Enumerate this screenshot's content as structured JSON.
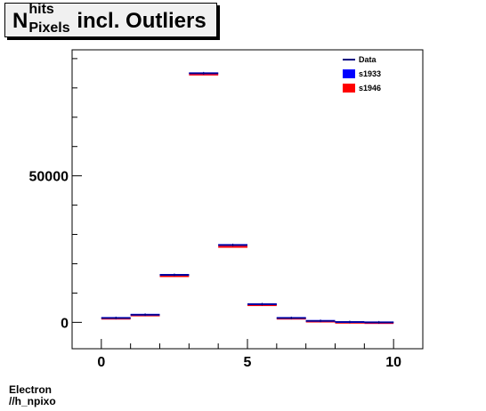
{
  "title": {
    "main": "N",
    "superscript": "hits",
    "subscript": "Pixels",
    "rest": "incl. Outliers"
  },
  "footer": {
    "line1": "Electron",
    "line2": "//h_npixo"
  },
  "chart_data": {
    "type": "bar",
    "xlim": [
      -1,
      11
    ],
    "ylim": [
      -9000,
      93000
    ],
    "xticks": [
      0,
      5,
      10
    ],
    "xtick_labels": [
      "0",
      "5",
      "10"
    ],
    "yticks": [
      0,
      50000
    ],
    "ytick_labels": [
      "0",
      "50000"
    ],
    "bins": [
      0,
      1,
      2,
      3,
      4,
      5,
      6,
      7,
      8,
      9
    ],
    "bin_width": 1,
    "series": [
      {
        "name": "Data",
        "color": "#000080",
        "values": [
          1500,
          2600,
          16200,
          85000,
          26400,
          6200,
          1500,
          500,
          120,
          0
        ]
      },
      {
        "name": "s1933",
        "color": "#0000ff",
        "values": [
          1500,
          2600,
          16200,
          85000,
          26400,
          6200,
          1500,
          500,
          120,
          0
        ]
      },
      {
        "name": "s1946",
        "color": "#ff0000",
        "values": [
          1500,
          2600,
          16000,
          84800,
          26000,
          6100,
          1500,
          500,
          120,
          0
        ]
      }
    ],
    "legend_position": "top-right",
    "xlabel": "",
    "ylabel": "",
    "grid": false
  }
}
